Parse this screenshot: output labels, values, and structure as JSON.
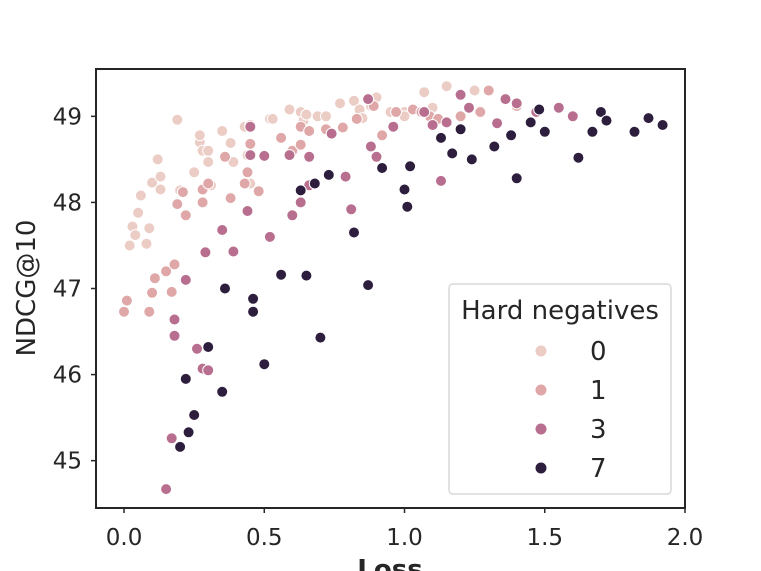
{
  "chart_data": {
    "type": "scatter",
    "title": "",
    "xlabel": "Loss",
    "ylabel": "NDCG@10",
    "xlim": [
      -0.1,
      2.0
    ],
    "ylim": [
      44.45,
      49.55
    ],
    "xticks": [
      0.0,
      0.5,
      1.0,
      1.5,
      2.0
    ],
    "xtick_labels": [
      "0.0",
      "0.5",
      "1.0",
      "1.5",
      "2.0"
    ],
    "yticks": [
      45,
      46,
      47,
      48,
      49
    ],
    "ytick_labels": [
      "45",
      "46",
      "47",
      "48",
      "49"
    ],
    "grid": false,
    "legend": {
      "title": "Hard negatives",
      "position": "lower-right",
      "entries": [
        "0",
        "1",
        "3",
        "7"
      ]
    },
    "series": [
      {
        "name": "0",
        "color": "#ebcdc6",
        "points": [
          [
            0.02,
            47.5
          ],
          [
            0.03,
            47.72
          ],
          [
            0.04,
            47.62
          ],
          [
            0.05,
            47.88
          ],
          [
            0.06,
            48.08
          ],
          [
            0.08,
            47.52
          ],
          [
            0.09,
            47.7
          ],
          [
            0.1,
            48.23
          ],
          [
            0.12,
            48.5
          ],
          [
            0.13,
            48.15
          ],
          [
            0.13,
            48.3
          ],
          [
            0.19,
            48.96
          ],
          [
            0.2,
            48.14
          ],
          [
            0.25,
            48.35
          ],
          [
            0.27,
            48.7
          ],
          [
            0.27,
            48.78
          ],
          [
            0.28,
            48.6
          ],
          [
            0.3,
            48.47
          ],
          [
            0.3,
            48.6
          ],
          [
            0.31,
            48.2
          ],
          [
            0.35,
            48.83
          ],
          [
            0.38,
            48.69
          ],
          [
            0.39,
            48.47
          ],
          [
            0.43,
            48.88
          ],
          [
            0.44,
            48.55
          ],
          [
            0.45,
            48.22
          ],
          [
            0.45,
            48.9
          ],
          [
            0.52,
            48.97
          ],
          [
            0.53,
            48.97
          ],
          [
            0.59,
            49.08
          ],
          [
            0.63,
            49.05
          ],
          [
            0.64,
            48.95
          ],
          [
            0.65,
            49.02
          ],
          [
            0.69,
            49.0
          ],
          [
            0.72,
            49.0
          ],
          [
            0.77,
            49.15
          ],
          [
            0.82,
            49.18
          ],
          [
            0.84,
            49.08
          ],
          [
            0.85,
            48.98
          ],
          [
            0.88,
            49.12
          ],
          [
            0.9,
            49.22
          ],
          [
            0.95,
            49.05
          ],
          [
            1.0,
            49.05
          ],
          [
            1.0,
            49.0
          ],
          [
            1.07,
            49.28
          ],
          [
            1.1,
            49.1
          ],
          [
            1.15,
            49.35
          ],
          [
            1.25,
            49.3
          ]
        ]
      },
      {
        "name": "1",
        "color": "#dfa7a7",
        "points": [
          [
            0.0,
            46.73
          ],
          [
            0.01,
            46.86
          ],
          [
            0.09,
            46.73
          ],
          [
            0.1,
            46.95
          ],
          [
            0.11,
            47.12
          ],
          [
            0.15,
            47.2
          ],
          [
            0.17,
            46.96
          ],
          [
            0.18,
            47.28
          ],
          [
            0.19,
            47.98
          ],
          [
            0.21,
            48.12
          ],
          [
            0.22,
            47.85
          ],
          [
            0.28,
            48.0
          ],
          [
            0.28,
            48.15
          ],
          [
            0.3,
            48.22
          ],
          [
            0.36,
            48.53
          ],
          [
            0.38,
            48.05
          ],
          [
            0.43,
            48.22
          ],
          [
            0.44,
            48.35
          ],
          [
            0.45,
            48.68
          ],
          [
            0.48,
            48.13
          ],
          [
            0.56,
            48.75
          ],
          [
            0.6,
            48.6
          ],
          [
            0.63,
            48.67
          ],
          [
            0.63,
            48.88
          ],
          [
            0.66,
            48.83
          ],
          [
            0.72,
            48.85
          ],
          [
            0.78,
            48.87
          ],
          [
            0.83,
            48.97
          ],
          [
            0.89,
            49.12
          ],
          [
            0.92,
            48.78
          ],
          [
            0.97,
            49.05
          ],
          [
            1.03,
            49.08
          ],
          [
            1.06,
            49.05
          ],
          [
            1.09,
            49.0
          ],
          [
            1.12,
            48.97
          ],
          [
            1.2,
            49.0
          ],
          [
            1.27,
            49.05
          ],
          [
            1.3,
            49.3
          ],
          [
            1.36,
            49.2
          ],
          [
            1.4,
            49.12
          ]
        ]
      },
      {
        "name": "3",
        "color": "#b86f8f",
        "points": [
          [
            0.15,
            44.67
          ],
          [
            0.17,
            45.26
          ],
          [
            0.18,
            46.45
          ],
          [
            0.18,
            46.64
          ],
          [
            0.22,
            47.1
          ],
          [
            0.26,
            46.3
          ],
          [
            0.28,
            46.07
          ],
          [
            0.29,
            47.42
          ],
          [
            0.3,
            46.05
          ],
          [
            0.35,
            47.68
          ],
          [
            0.39,
            47.43
          ],
          [
            0.44,
            47.9
          ],
          [
            0.45,
            48.55
          ],
          [
            0.45,
            48.88
          ],
          [
            0.5,
            48.54
          ],
          [
            0.52,
            47.6
          ],
          [
            0.59,
            48.55
          ],
          [
            0.6,
            47.85
          ],
          [
            0.63,
            48.0
          ],
          [
            0.66,
            48.2
          ],
          [
            0.66,
            48.53
          ],
          [
            0.74,
            48.8
          ],
          [
            0.79,
            48.3
          ],
          [
            0.81,
            47.92
          ],
          [
            0.87,
            49.2
          ],
          [
            0.88,
            48.65
          ],
          [
            0.9,
            48.53
          ],
          [
            0.96,
            48.88
          ],
          [
            1.07,
            49.05
          ],
          [
            1.1,
            48.9
          ],
          [
            1.13,
            48.25
          ],
          [
            1.15,
            48.93
          ],
          [
            1.2,
            49.25
          ],
          [
            1.23,
            49.1
          ],
          [
            1.33,
            48.92
          ],
          [
            1.36,
            49.2
          ],
          [
            1.4,
            49.15
          ],
          [
            1.47,
            49.05
          ],
          [
            1.55,
            49.1
          ],
          [
            1.6,
            49.0
          ]
        ]
      },
      {
        "name": "7",
        "color": "#2d1e3e",
        "points": [
          [
            0.2,
            45.16
          ],
          [
            0.22,
            45.95
          ],
          [
            0.23,
            45.33
          ],
          [
            0.25,
            45.53
          ],
          [
            0.3,
            46.32
          ],
          [
            0.35,
            45.8
          ],
          [
            0.36,
            47.0
          ],
          [
            0.46,
            46.88
          ],
          [
            0.46,
            46.73
          ],
          [
            0.5,
            46.12
          ],
          [
            0.56,
            47.16
          ],
          [
            0.63,
            48.14
          ],
          [
            0.65,
            47.15
          ],
          [
            0.68,
            48.22
          ],
          [
            0.7,
            46.43
          ],
          [
            0.73,
            48.32
          ],
          [
            0.82,
            47.65
          ],
          [
            0.87,
            47.04
          ],
          [
            0.92,
            48.4
          ],
          [
            1.0,
            48.15
          ],
          [
            1.01,
            47.95
          ],
          [
            1.02,
            48.42
          ],
          [
            1.13,
            48.75
          ],
          [
            1.17,
            48.57
          ],
          [
            1.2,
            48.85
          ],
          [
            1.24,
            48.5
          ],
          [
            1.32,
            48.65
          ],
          [
            1.38,
            48.78
          ],
          [
            1.4,
            48.28
          ],
          [
            1.45,
            48.93
          ],
          [
            1.48,
            49.08
          ],
          [
            1.5,
            48.82
          ],
          [
            1.62,
            48.52
          ],
          [
            1.67,
            48.82
          ],
          [
            1.7,
            49.05
          ],
          [
            1.72,
            48.95
          ],
          [
            1.82,
            48.82
          ],
          [
            1.87,
            48.98
          ],
          [
            1.92,
            48.9
          ]
        ]
      }
    ]
  }
}
